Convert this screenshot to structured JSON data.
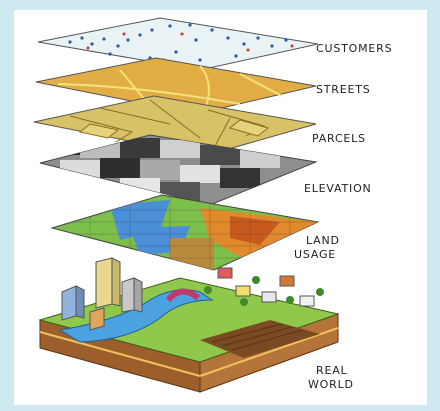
{
  "layers": [
    {
      "id": "customers",
      "label": "CUSTOMERS"
    },
    {
      "id": "streets",
      "label": "STREETS"
    },
    {
      "id": "parcels",
      "label": "PARCELS"
    },
    {
      "id": "elevation",
      "label": "ELEVATION"
    },
    {
      "id": "land-usage",
      "label_lines": [
        "LAND",
        "USAGE"
      ]
    },
    {
      "id": "real-world",
      "label_lines": [
        "REAL",
        "WORLD"
      ]
    }
  ],
  "colors": {
    "background": "#cfe9f0",
    "customers_plane": "#e8f2f4",
    "streets_plane": "#e0ae45",
    "parcels_plane": "#d6c063",
    "elevation_dark": "#2a2a2a",
    "elevation_light": "#cfcfcf",
    "land_green": "#7cbf4a",
    "land_blue": "#4b8fd8",
    "land_orange": "#e08a2c",
    "ground_green": "#8fc84a",
    "soil": "#a0662f"
  }
}
